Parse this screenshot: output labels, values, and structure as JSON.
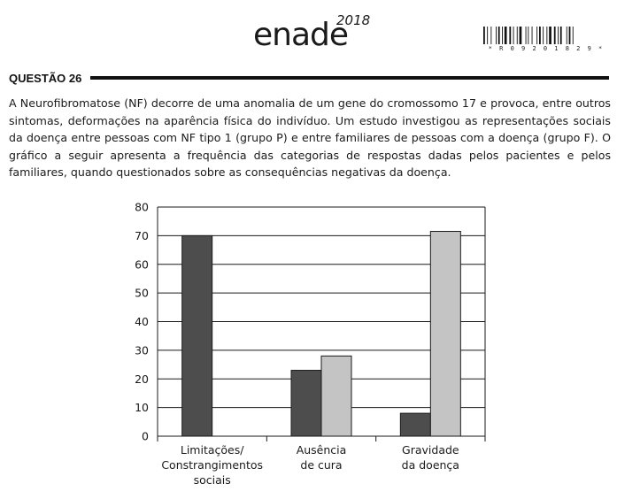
{
  "header": {
    "logo_text": "enade",
    "logo_year": "2018",
    "barcode_digits": "* R 0 9 2 0 1 8 2 9 *"
  },
  "question": {
    "title": "QUESTÃO 26",
    "text": "A Neurofibromatose (NF) decorre de uma anomalia de um gene do cromossomo 17 e provoca, entre outros sintomas, deformações na aparência física do indivíduo. Um estudo investigou as representações sociais da doença entre pessoas com NF tipo 1 (grupo P) e entre familiares de pessoas com a doença (grupo F). O gráfico a seguir apresenta a frequência das categorias de respostas dadas pelos pacientes e pelos familiares, quando questionados sobre as consequências negativas da doença."
  },
  "chart_data": {
    "type": "bar",
    "categories": [
      [
        "Limitações/",
        "Constrangimentos",
        "sociais"
      ],
      [
        "Ausência",
        "de cura"
      ],
      [
        "Gravidade",
        "da doença"
      ]
    ],
    "series": [
      {
        "values": [
          70,
          23,
          8
        ],
        "color": "#4d4d4d"
      },
      {
        "values": [
          0,
          28,
          71.5
        ],
        "color": "#c4c4c4"
      }
    ],
    "ylim": [
      0,
      80
    ],
    "yticks": [
      0,
      10,
      20,
      30,
      40,
      50,
      60,
      70,
      80
    ],
    "grid": true,
    "legend": "none"
  }
}
